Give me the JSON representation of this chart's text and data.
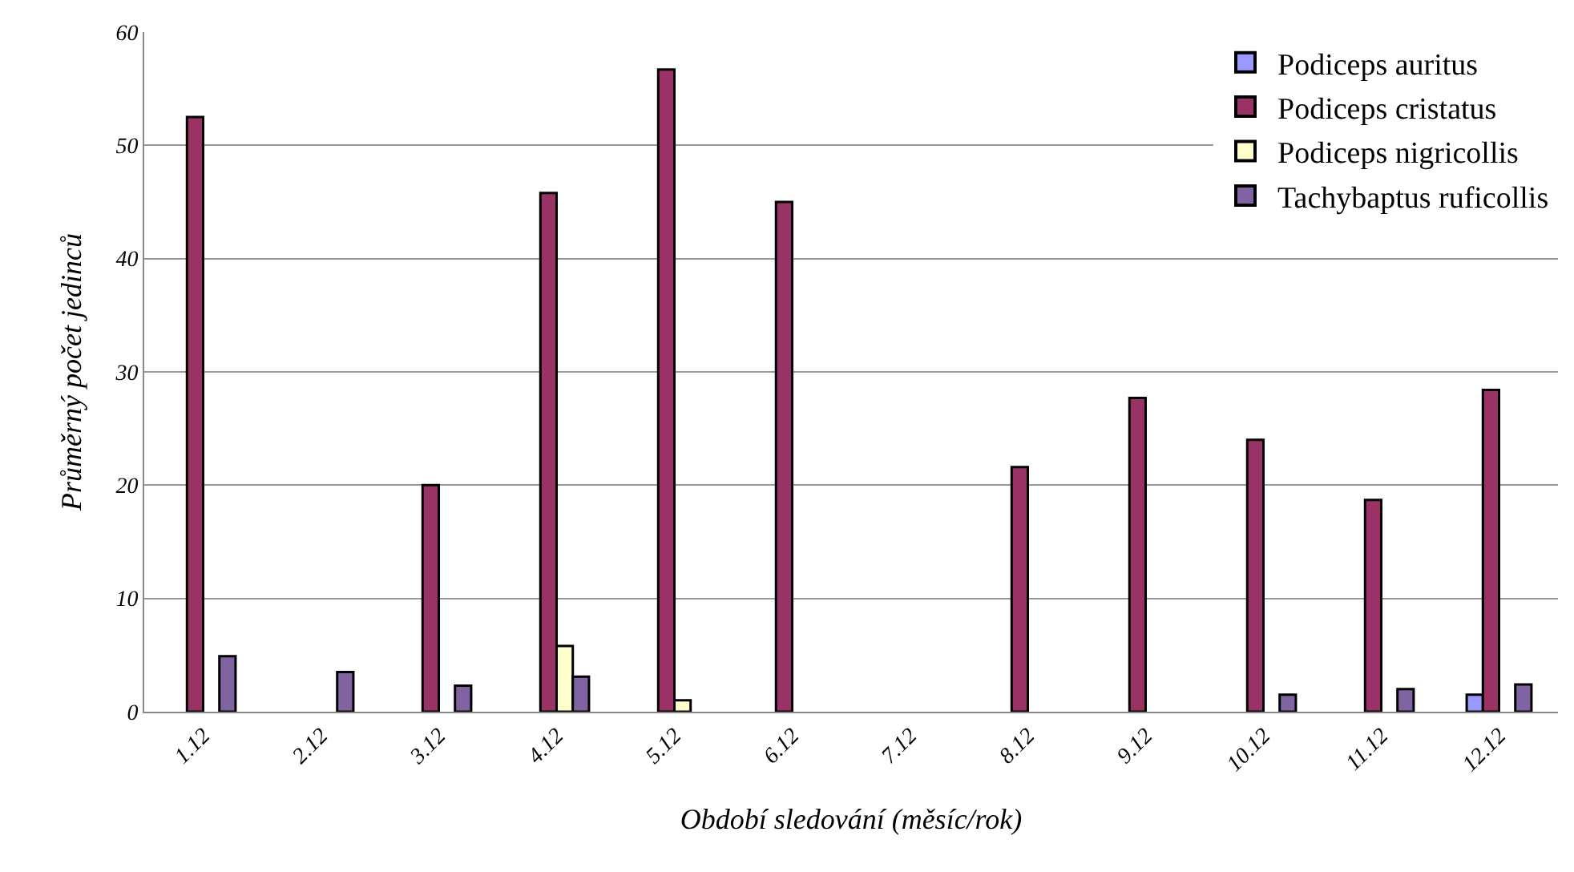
{
  "chart_data": {
    "type": "bar",
    "xlabel": "Období sledování (měsíc/rok)",
    "ylabel": "Průměrný počet jedinců",
    "categories": [
      "1.12",
      "2.12",
      "3.12",
      "4.12",
      "5.12",
      "6.12",
      "7.12",
      "8.12",
      "9.12",
      "10.12",
      "11.12",
      "12.12"
    ],
    "series": [
      {
        "name": "Podiceps auritus",
        "color": "#9999ff",
        "values": [
          null,
          null,
          null,
          null,
          null,
          null,
          null,
          null,
          null,
          null,
          null,
          1.5
        ]
      },
      {
        "name": "Podiceps cristatus",
        "color": "#993366",
        "values": [
          52.5,
          null,
          20,
          45.8,
          56.7,
          45,
          null,
          21.6,
          27.7,
          24,
          18.7,
          28.4
        ]
      },
      {
        "name": "Podiceps nigricollis",
        "color": "#ffffcc",
        "values": [
          null,
          null,
          null,
          5.8,
          1,
          null,
          null,
          null,
          null,
          null,
          null,
          null
        ]
      },
      {
        "name": "Tachybaptus ruficollis",
        "color": "#8064a2",
        "values": [
          4.9,
          3.5,
          2.3,
          3.1,
          null,
          null,
          null,
          null,
          null,
          1.5,
          2,
          2.4
        ]
      }
    ],
    "ylim": [
      0,
      60
    ],
    "yticks": [
      0,
      10,
      20,
      30,
      40,
      50,
      60
    ],
    "grid": "y",
    "legend": "top right"
  }
}
